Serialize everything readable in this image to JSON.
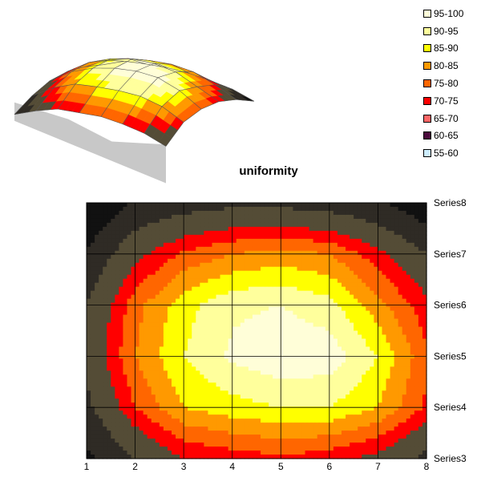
{
  "chart_data": {
    "type": "contour",
    "title": "uniformity",
    "x": [
      1,
      2,
      3,
      4,
      5,
      6,
      7,
      8
    ],
    "series": [
      {
        "name": "Series3",
        "values": [
          52,
          62,
          70,
          72,
          74,
          72,
          68,
          60
        ]
      },
      {
        "name": "Series4",
        "values": [
          60,
          75,
          85,
          88,
          90,
          90,
          85,
          74
        ]
      },
      {
        "name": "Series5",
        "values": [
          64,
          80,
          90,
          96,
          99,
          98,
          90,
          76
        ]
      },
      {
        "name": "Series6",
        "values": [
          62,
          78,
          88,
          94,
          95,
          92,
          82,
          72
        ]
      },
      {
        "name": "Series7",
        "values": [
          55,
          68,
          76,
          80,
          82,
          80,
          72,
          62
        ]
      },
      {
        "name": "Series8",
        "values": [
          45,
          55,
          58,
          60,
          60,
          58,
          55,
          48
        ]
      }
    ],
    "legend": {
      "position": "top-right",
      "entries": [
        {
          "label": "95-100",
          "color": "#fffed8"
        },
        {
          "label": "90-95",
          "color": "#ffff9c"
        },
        {
          "label": "85-90",
          "color": "#ffff00"
        },
        {
          "label": "80-85",
          "color": "#ff9900"
        },
        {
          "label": "75-80",
          "color": "#ff6600"
        },
        {
          "label": "70-75",
          "color": "#ff0000"
        },
        {
          "label": "65-70",
          "color": "#ff6666"
        },
        {
          "label": "60-65",
          "color": "#4b0a3c"
        },
        {
          "label": "55-60",
          "color": "#cdeeff"
        }
      ]
    },
    "band_colors_below_threshold": [
      "#111111",
      "#2f2b25",
      "#544c36"
    ],
    "xlim": [
      1,
      8
    ],
    "grid": true
  }
}
